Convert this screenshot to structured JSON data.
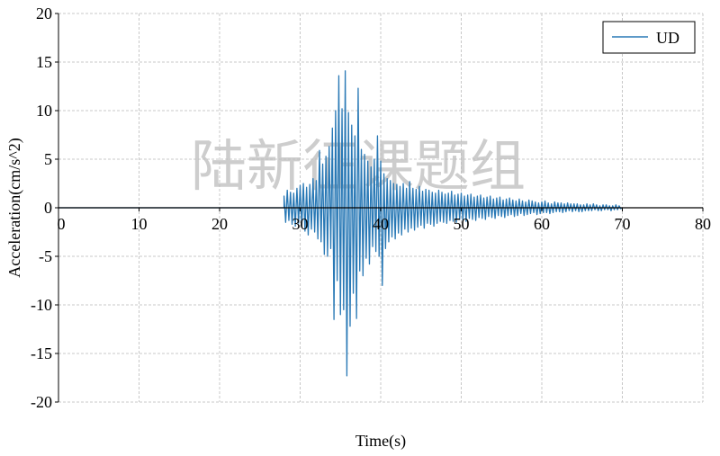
{
  "chart_data": {
    "type": "line",
    "title": "",
    "xlabel": "Time(s)",
    "ylabel": "Acceleration(cm/s^2)",
    "xlim": [
      0,
      80
    ],
    "ylim": [
      -20,
      20
    ],
    "xticks": [
      0,
      10,
      20,
      30,
      40,
      50,
      60,
      70,
      80
    ],
    "yticks": [
      20,
      15,
      10,
      5,
      0,
      -5,
      -10,
      -15,
      -20
    ],
    "grid": true,
    "legend_position": "top-right",
    "watermark": "陆新征课题组",
    "series": [
      {
        "name": "UD",
        "color": "#2878b5",
        "quiet_until": 28,
        "x_start": 28,
        "dt": 0.2,
        "y": [
          1.2,
          -1.5,
          1.8,
          -1.3,
          1.6,
          -1.7,
          1.5,
          -1.9,
          2.0,
          -1.6,
          2.3,
          -2.0,
          2.5,
          -2.4,
          2.1,
          -2.8,
          2.4,
          -2.2,
          3.0,
          -2.5,
          2.8,
          -3.2,
          5.9,
          -3.5,
          4.5,
          -4.8,
          5.3,
          -5.0,
          6.3,
          -4.2,
          8.2,
          -11.5,
          10.0,
          -7.5,
          13.6,
          -11.0,
          10.2,
          -10.5,
          14.1,
          -17.3,
          9.8,
          -12.2,
          8.5,
          -8.8,
          7.4,
          -11.4,
          12.3,
          -6.5,
          6.0,
          -7.0,
          5.5,
          -5.2,
          4.8,
          -5.8,
          4.2,
          -4.0,
          5.0,
          -4.5,
          7.4,
          -5.0,
          4.8,
          -8.0,
          3.5,
          -4.2,
          3.0,
          -3.5,
          2.8,
          -3.0,
          2.5,
          -3.2,
          2.4,
          -2.6,
          2.2,
          -2.8,
          2.5,
          -2.2,
          2.0,
          -2.5,
          2.7,
          -2.1,
          2.0,
          -2.3,
          1.9,
          -2.0,
          2.2,
          -1.8,
          1.7,
          -2.1,
          1.9,
          -1.6,
          1.8,
          -1.7,
          1.6,
          -1.9,
          1.5,
          -1.6,
          1.8,
          -1.4,
          1.6,
          -1.5,
          1.4,
          -1.6,
          1.5,
          -1.3,
          1.7,
          -1.4,
          1.3,
          -1.5,
          1.4,
          -1.2,
          1.5,
          -1.3,
          1.2,
          -1.4,
          1.3,
          -1.1,
          1.4,
          -1.2,
          1.1,
          -1.3,
          1.2,
          -1.0,
          1.3,
          -1.1,
          1.0,
          -1.2,
          1.1,
          -0.9,
          1.2,
          -1.0,
          0.9,
          -1.1,
          1.0,
          -0.8,
          1.1,
          -0.9,
          0.8,
          -1.0,
          0.9,
          -0.8,
          1.0,
          -0.7,
          0.8,
          -0.9,
          0.7,
          -0.8,
          0.9,
          -0.6,
          0.7,
          -0.8,
          0.6,
          -0.7,
          0.8,
          -0.6,
          0.7,
          -0.5,
          0.6,
          -0.7,
          0.5,
          -0.6,
          0.6,
          -0.5,
          0.7,
          -0.5,
          0.5,
          -0.6,
          0.4,
          -0.5,
          0.6,
          -0.4,
          0.5,
          -0.4,
          0.5,
          -0.5,
          0.4,
          -0.4,
          0.5,
          -0.3,
          0.4,
          -0.4,
          0.4,
          -0.3,
          0.4,
          -0.4,
          0.3,
          -0.4,
          0.3,
          -0.3,
          0.4,
          -0.3,
          0.3,
          -0.3,
          0.4,
          -0.2,
          0.3,
          -0.3,
          0.2,
          -0.3,
          0.3,
          -0.2,
          0.3,
          -0.2,
          0.2,
          -0.3,
          0.2,
          -0.2,
          0.3,
          -0.2,
          0.2,
          -0.1,
          0
        ]
      }
    ]
  }
}
